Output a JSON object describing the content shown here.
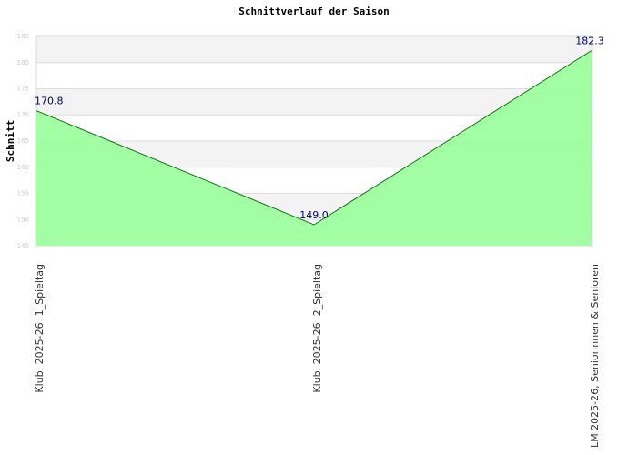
{
  "chart_data": {
    "type": "area",
    "title": "Schnittverlauf der Saison",
    "y_label": "Schnitt",
    "categories": [
      "Klub. 2025-26  1_Spieltag",
      "Klub. 2025-26  2_Spieltag",
      "LM 2025-26, Seniorinnen & Senioren"
    ],
    "values": [
      170.8,
      149.0,
      182.3
    ],
    "value_labels": [
      "170.8",
      "149.0",
      "182.3"
    ],
    "color": "#99ff99",
    "line_color": "#008000",
    "label_color": "#000080",
    "ylim": [
      145,
      185
    ],
    "yticks": [
      145,
      150,
      155,
      160,
      165,
      170,
      175,
      180,
      185
    ],
    "grid": true
  }
}
